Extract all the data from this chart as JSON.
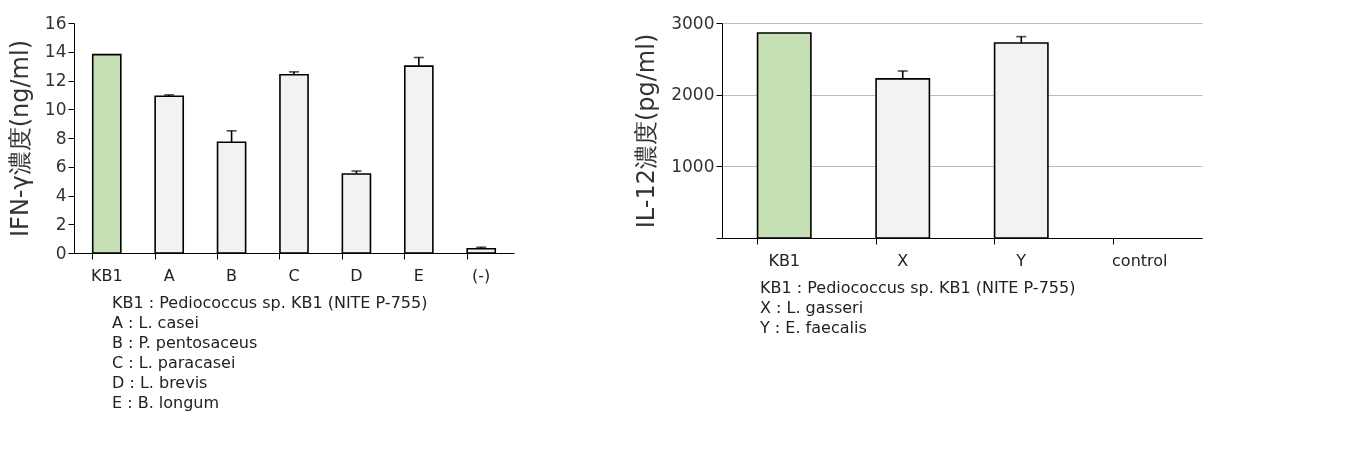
{
  "chart_data": [
    {
      "type": "bar",
      "ylabel": "IFN-γ濃度(ng/ml)",
      "categories": [
        "KB1",
        "A",
        "B",
        "C",
        "D",
        "E",
        "(-)"
      ],
      "values": [
        13.8,
        10.9,
        7.7,
        12.4,
        5.5,
        13.0,
        0.3
      ],
      "colors": [
        "#c5e0b4",
        "#f2f2f2",
        "#f2f2f2",
        "#f2f2f2",
        "#f2f2f2",
        "#f2f2f2",
        "#f2f2f2"
      ],
      "errors": [
        null,
        [
          10.9,
          11.0
        ],
        [
          7.7,
          8.5
        ],
        [
          12.4,
          12.6
        ],
        [
          5.5,
          5.7
        ],
        [
          13.0,
          13.6
        ],
        [
          0.3,
          0.4
        ]
      ],
      "ylim": [
        0,
        16
      ],
      "yticks": [
        0,
        2,
        4,
        6,
        8,
        10,
        12,
        14,
        16
      ],
      "grid": false,
      "annotations": [
        "KB1 : Pediococcus sp. KB1 (NITE P-755)",
        "A : L. casei",
        "B : P. pentosaceus",
        "C : L. paracasei",
        "D : L. brevis",
        "E : B. longum"
      ]
    },
    {
      "type": "bar",
      "ylabel": "IL-12濃度(pg/ml)",
      "categories": [
        "KB1",
        "X",
        "Y",
        "control"
      ],
      "values": [
        2860,
        2220,
        2720,
        null
      ],
      "colors": [
        "#c5e0b4",
        "#f2f2f2",
        "#f2f2f2",
        "#f2f2f2"
      ],
      "errors": [
        null,
        [
          2220,
          2330
        ],
        [
          2720,
          2810
        ],
        null
      ],
      "ylim": [
        0,
        3000
      ],
      "yticks": [
        {
          "value": 0,
          "label": null
        },
        1000,
        2000,
        3000
      ],
      "grid": "y",
      "annotations": [
        "KB1 : Pediococcus sp. KB1 (NITE P-755)",
        "X : L. gasseri",
        "Y : E. faecalis"
      ]
    }
  ]
}
